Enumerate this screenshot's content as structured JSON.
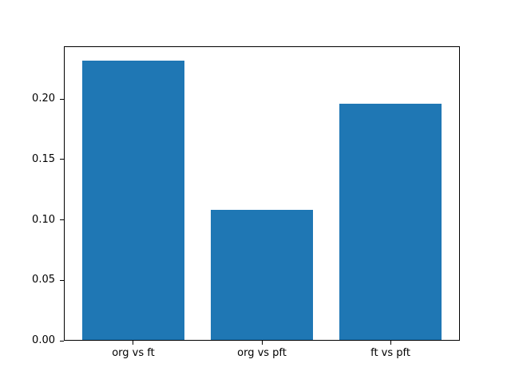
{
  "chart_data": {
    "type": "bar",
    "title": "",
    "xlabel": "",
    "ylabel": "",
    "categories": [
      "org vs ft",
      "org vs pft",
      "ft vs pft"
    ],
    "values": [
      0.232,
      0.108,
      0.196
    ],
    "bar_color": "#1f77b4",
    "bar_width": 0.8,
    "xlim": [
      -0.54,
      2.54
    ],
    "ylim": [
      0,
      0.2436
    ],
    "yticks": [
      0.0,
      0.05,
      0.1,
      0.15,
      0.2
    ],
    "ytick_labels": [
      "0.00",
      "0.05",
      "0.10",
      "0.15",
      "0.20"
    ],
    "grid": false,
    "legend": false,
    "background": "#ffffff",
    "frame_color": "#000000"
  }
}
